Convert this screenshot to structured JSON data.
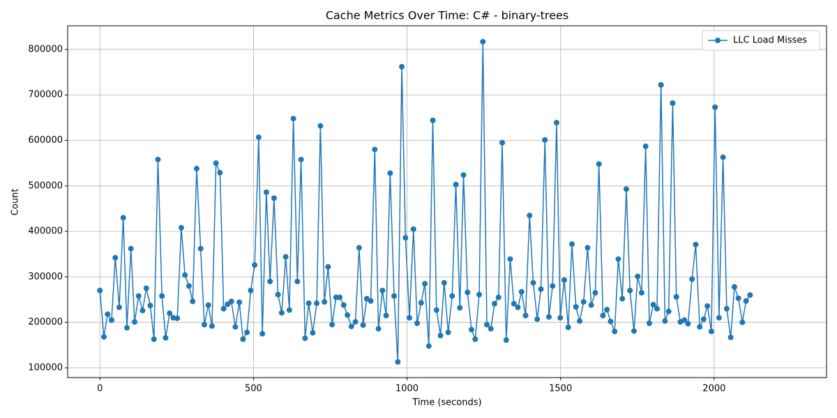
{
  "chart_data": {
    "type": "line",
    "title": "Cache Metrics Over Time: C# - binary-trees",
    "x_label": "Time (seconds)",
    "y_label": "Count",
    "x": [
      0,
      13,
      25,
      38,
      50,
      63,
      76,
      88,
      101,
      113,
      126,
      139,
      151,
      164,
      176,
      189,
      202,
      214,
      227,
      239,
      252,
      265,
      277,
      290,
      302,
      315,
      328,
      340,
      353,
      365,
      378,
      391,
      403,
      416,
      428,
      441,
      454,
      466,
      479,
      491,
      504,
      517,
      529,
      542,
      554,
      567,
      580,
      592,
      605,
      617,
      630,
      643,
      655,
      668,
      680,
      693,
      706,
      718,
      731,
      743,
      756,
      769,
      781,
      794,
      806,
      819,
      832,
      844,
      857,
      869,
      882,
      895,
      907,
      920,
      932,
      945,
      958,
      970,
      983,
      995,
      1008,
      1021,
      1033,
      1046,
      1058,
      1071,
      1084,
      1096,
      1109,
      1121,
      1134,
      1147,
      1159,
      1172,
      1184,
      1197,
      1210,
      1222,
      1235,
      1247,
      1260,
      1273,
      1285,
      1298,
      1310,
      1323,
      1336,
      1348,
      1361,
      1373,
      1386,
      1399,
      1411,
      1424,
      1436,
      1449,
      1462,
      1474,
      1487,
      1499,
      1512,
      1525,
      1537,
      1550,
      1562,
      1575,
      1588,
      1600,
      1613,
      1625,
      1638,
      1651,
      1663,
      1676,
      1688,
      1701,
      1714,
      1726,
      1739,
      1751,
      1764,
      1777,
      1789,
      1802,
      1814,
      1827,
      1840,
      1852,
      1865,
      1877,
      1890,
      1903,
      1915,
      1928,
      1940,
      1953,
      1966,
      1978,
      1991,
      2003,
      2016,
      2029,
      2041,
      2054,
      2066,
      2079,
      2092,
      2104,
      2117
    ],
    "series": [
      {
        "name": "LLC Load Misses",
        "color": "#1f77b4",
        "values": [
          270000,
          168000,
          218000,
          205000,
          342000,
          233000,
          430000,
          188000,
          362000,
          201000,
          258000,
          226000,
          275000,
          237000,
          163000,
          558000,
          258000,
          166000,
          220000,
          210000,
          209000,
          408000,
          304000,
          280000,
          246000,
          538000,
          362000,
          195000,
          238000,
          192000,
          550000,
          529000,
          230000,
          240000,
          246000,
          190000,
          244000,
          163000,
          178000,
          270000,
          326000,
          607000,
          175000,
          486000,
          290000,
          473000,
          261000,
          221000,
          344000,
          227000,
          648000,
          290000,
          558000,
          165000,
          242000,
          177000,
          242000,
          632000,
          245000,
          322000,
          195000,
          255000,
          255000,
          238000,
          216000,
          191000,
          201000,
          364000,
          194000,
          252000,
          247000,
          580000,
          186000,
          270000,
          215000,
          528000,
          258000,
          113000,
          762000,
          386000,
          210000,
          405000,
          198000,
          243000,
          285000,
          148000,
          644000,
          227000,
          171000,
          287000,
          178000,
          258000,
          503000,
          232000,
          524000,
          266000,
          184000,
          163000,
          261000,
          817000,
          195000,
          186000,
          241000,
          255000,
          595000,
          161000,
          339000,
          241000,
          233000,
          267000,
          215000,
          435000,
          287000,
          207000,
          273000,
          601000,
          212000,
          280000,
          639000,
          210000,
          293000,
          189000,
          372000,
          234000,
          203000,
          245000,
          364000,
          238000,
          265000,
          548000,
          215000,
          228000,
          202000,
          180000,
          339000,
          252000,
          493000,
          270000,
          181000,
          301000,
          265000,
          587000,
          198000,
          239000,
          230000,
          722000,
          203000,
          224000,
          682000,
          256000,
          201000,
          205000,
          197000,
          295000,
          371000,
          190000,
          207000,
          236000,
          180000,
          673000,
          210000,
          563000,
          230000,
          167000,
          278000,
          253000,
          200000,
          247000,
          260000
        ]
      }
    ],
    "xlim": [
      -105,
      2366
    ],
    "xticks": [
      0,
      500,
      1000,
      1500,
      2000
    ],
    "ylim": [
      78550,
      852000
    ],
    "yticks": [
      100000,
      200000,
      300000,
      400000,
      500000,
      600000,
      700000,
      800000
    ],
    "grid": true,
    "legend": "upper right"
  }
}
